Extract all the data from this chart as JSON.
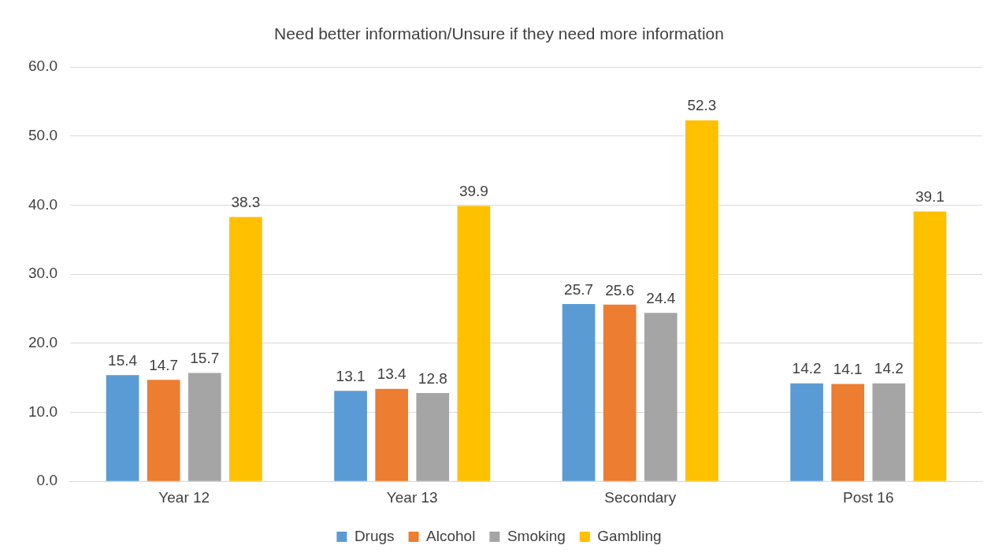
{
  "chart_data": {
    "type": "bar",
    "title": "Need better information/Unsure if they need more information",
    "categories": [
      "Year 12",
      "Year 13",
      "Secondary",
      "Post 16"
    ],
    "series": [
      {
        "name": "Drugs",
        "color": "#5b9bd5",
        "values": [
          15.4,
          13.1,
          25.7,
          14.2
        ]
      },
      {
        "name": "Alcohol",
        "color": "#ed7d31",
        "values": [
          14.7,
          13.4,
          25.6,
          14.1
        ]
      },
      {
        "name": "Smoking",
        "color": "#a5a5a5",
        "values": [
          15.7,
          12.8,
          24.4,
          14.2
        ]
      },
      {
        "name": "Gambling",
        "color": "#ffc000",
        "values": [
          38.3,
          39.9,
          52.3,
          39.1
        ]
      }
    ],
    "ylim": [
      0,
      60
    ],
    "yticks": [
      {
        "value": 0,
        "label": "0.0"
      },
      {
        "value": 10,
        "label": "10.0"
      },
      {
        "value": 20,
        "label": "20.0"
      },
      {
        "value": 30,
        "label": "30.0"
      },
      {
        "value": 40,
        "label": "40.0"
      },
      {
        "value": 50,
        "label": "50.0"
      },
      {
        "value": 60,
        "label": "60.0"
      }
    ],
    "grid": "y",
    "legend": "bottom",
    "data_labels": true
  }
}
